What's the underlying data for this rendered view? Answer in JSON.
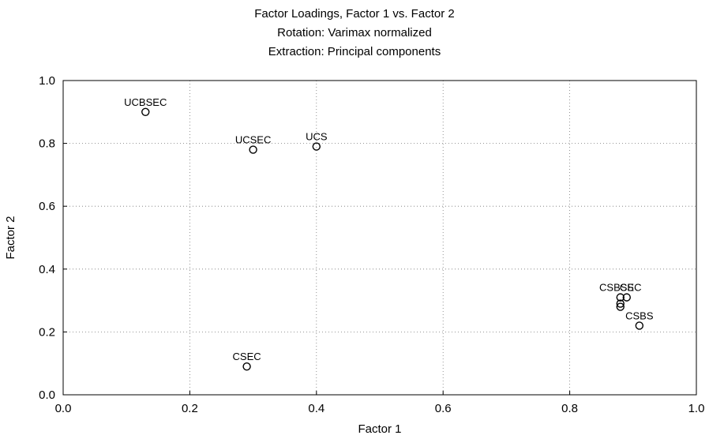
{
  "chart_data": {
    "type": "scatter",
    "title": "Factor Loadings, Factor 1 vs. Factor 2",
    "subtitle": [
      "Rotation: Varimax normalized",
      "Extraction: Principal components"
    ],
    "xlabel": "Factor 1",
    "ylabel": "Factor 2",
    "xlim": [
      0.0,
      1.0
    ],
    "ylim": [
      0.0,
      1.0
    ],
    "xticks": [
      "0.0",
      "0.2",
      "0.4",
      "0.6",
      "0.8",
      "1.0"
    ],
    "yticks": [
      "0.0",
      "0.2",
      "0.4",
      "0.6",
      "0.8",
      "1.0"
    ],
    "grid": true,
    "points": [
      {
        "label": "UCBSEC",
        "x": 0.13,
        "y": 0.9
      },
      {
        "label": "UCSEC",
        "x": 0.3,
        "y": 0.78
      },
      {
        "label": "UCS",
        "x": 0.4,
        "y": 0.79
      },
      {
        "label": "CSEC",
        "x": 0.29,
        "y": 0.09
      },
      {
        "label": "CSBSEC",
        "x": 0.88,
        "y": 0.31
      },
      {
        "label": "CS",
        "x": 0.89,
        "y": 0.31
      },
      {
        "label": "",
        "x": 0.88,
        "y": 0.29
      },
      {
        "label": "",
        "x": 0.88,
        "y": 0.28
      },
      {
        "label": "CSBS",
        "x": 0.91,
        "y": 0.22
      }
    ]
  }
}
